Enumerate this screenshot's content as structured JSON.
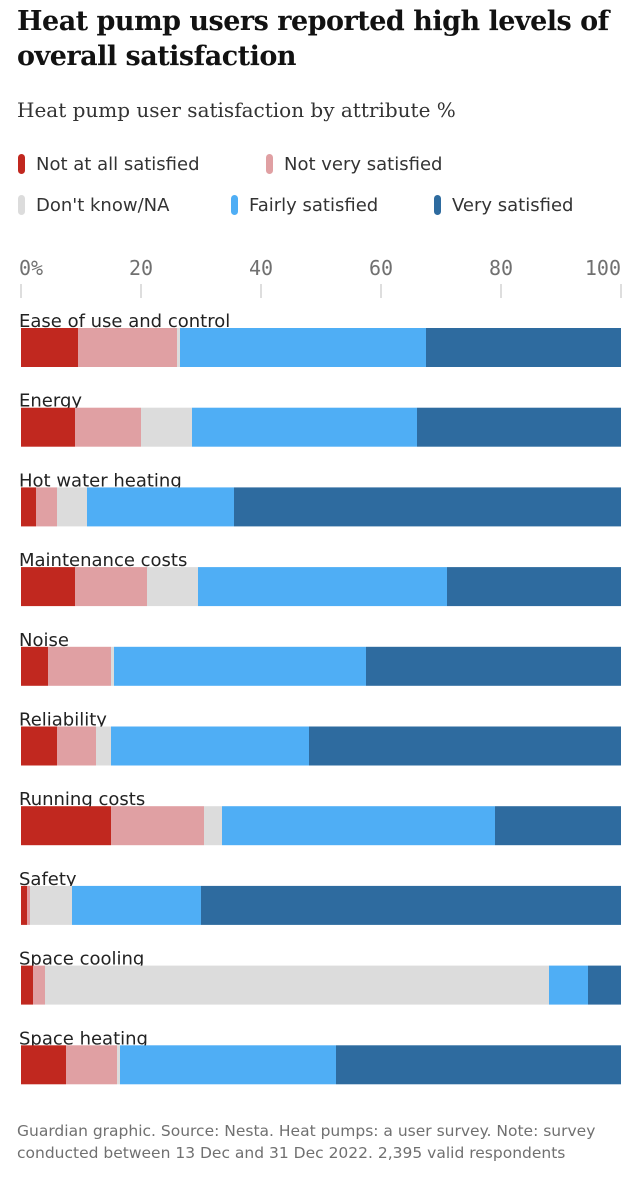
{
  "headline": "Heat pump users reported high levels of overall satisfaction",
  "chart_data": {
    "type": "bar",
    "orientation": "horizontal",
    "stacked": true,
    "title": "Heat pump user satisfaction by attribute %",
    "xlabel": "",
    "ylabel": "",
    "xlim": [
      0,
      100
    ],
    "ticks": [
      {
        "value": 0,
        "label": "0%"
      },
      {
        "value": 20,
        "label": "20"
      },
      {
        "value": 40,
        "label": "40"
      },
      {
        "value": 60,
        "label": "60"
      },
      {
        "value": 80,
        "label": "80"
      },
      {
        "value": 100,
        "label": "100"
      }
    ],
    "legend_placement": "top",
    "categories": [
      "Ease of use and control",
      "Energy",
      "Hot water heating",
      "Maintenance costs",
      "Noise",
      "Reliability",
      "Running costs",
      "Safety",
      "Space cooling",
      "Space heating"
    ],
    "series": [
      {
        "name": "Not at all satisfied",
        "color": "#c1281f",
        "values": [
          9.5,
          9,
          2.5,
          9,
          4.5,
          6,
          15,
          1,
          2,
          7.5
        ]
      },
      {
        "name": "Not very satisfied",
        "color": "#e0a0a3",
        "values": [
          16.5,
          11,
          3.5,
          12,
          10.5,
          6.5,
          15.5,
          0.5,
          2,
          8.5
        ]
      },
      {
        "name": "Don't know/NA",
        "color": "#dcdcdc",
        "values": [
          0.5,
          8.5,
          5,
          8.5,
          0.5,
          2.5,
          3,
          7,
          84,
          0.5
        ]
      },
      {
        "name": "Fairly satisfied",
        "color": "#4faef5",
        "values": [
          41,
          37.5,
          24.5,
          41.5,
          42,
          33,
          45.5,
          21.5,
          6.5,
          36
        ]
      },
      {
        "name": "Very satisfied",
        "color": "#2e6b9f",
        "values": [
          32.5,
          34,
          64.5,
          29,
          42.5,
          52,
          21,
          70,
          5.5,
          47.5
        ]
      }
    ]
  },
  "source": "Guardian graphic. Source: Nesta. Heat pumps: a user survey. Note: survey conducted between 13 Dec and 31 Dec 2022. 2,395 valid respondents"
}
